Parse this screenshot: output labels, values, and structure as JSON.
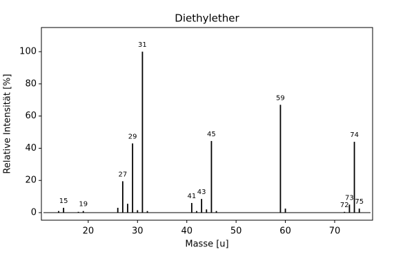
{
  "chart_data": {
    "type": "stem",
    "title": "Diethylether",
    "x_label": "Masse [u]",
    "y_label": "Relative Intensität [%]",
    "x": [
      14,
      15,
      18,
      19,
      26,
      27,
      28,
      29,
      30,
      31,
      32,
      41,
      42,
      43,
      44,
      45,
      46,
      59,
      60,
      72,
      73,
      74,
      75
    ],
    "values": [
      1,
      3,
      0.5,
      1,
      3,
      19.5,
      5.5,
      43,
      1.5,
      100,
      1,
      6,
      1,
      8.5,
      2,
      44.5,
      1,
      67,
      2.5,
      0.5,
      5,
      44,
      2.5
    ],
    "peak_labels": [
      15,
      19,
      27,
      29,
      31,
      41,
      43,
      45,
      59,
      72,
      73,
      74,
      75
    ],
    "color": "#000000",
    "xlim": [
      10.5,
      77.7
    ],
    "ylim": [
      -4.7,
      115
    ],
    "xticks": [
      20,
      30,
      40,
      50,
      60,
      70
    ],
    "yticks": [
      0,
      20,
      40,
      60,
      80,
      100
    ]
  }
}
